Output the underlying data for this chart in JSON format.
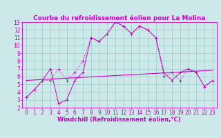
{
  "title": "Courbe du refroidissement éolien pour La Molina",
  "xlabel": "Windchill (Refroidissement éolien,°C)",
  "bg_color": "#cce8e8",
  "line1_x": [
    0,
    1,
    2,
    3,
    4,
    5,
    6,
    7,
    8,
    9,
    10,
    11,
    12,
    13,
    14,
    15,
    16,
    17,
    18,
    19,
    20,
    21,
    22,
    23
  ],
  "line1_y": [
    3.3,
    4.3,
    5.5,
    5.5,
    7.0,
    5.5,
    6.5,
    8.0,
    11.0,
    10.5,
    11.5,
    13.0,
    12.5,
    11.5,
    12.5,
    12.0,
    11.0,
    6.0,
    6.5,
    5.5,
    7.0,
    6.5,
    4.7,
    5.5
  ],
  "line2_x": [
    0,
    1,
    2,
    3,
    4,
    5,
    6,
    7,
    8,
    9,
    10,
    11,
    12,
    13,
    14,
    15,
    16,
    17,
    18,
    19,
    20,
    21,
    22,
    23
  ],
  "line2_y": [
    3.3,
    4.3,
    5.5,
    7.0,
    2.5,
    3.0,
    5.5,
    6.5,
    11.0,
    10.5,
    11.5,
    13.0,
    12.5,
    11.5,
    12.5,
    12.0,
    11.0,
    6.5,
    5.5,
    6.5,
    7.0,
    6.5,
    4.7,
    5.5
  ],
  "trend_x": [
    0,
    23
  ],
  "trend_y": [
    5.5,
    6.8
  ],
  "line_color": "#cc00cc",
  "marker": "+",
  "xlim": [
    -0.5,
    23.5
  ],
  "ylim": [
    2,
    13
  ],
  "yticks": [
    2,
    3,
    4,
    5,
    6,
    7,
    8,
    9,
    10,
    11,
    12,
    13
  ],
  "xticks": [
    0,
    1,
    2,
    3,
    4,
    5,
    6,
    7,
    8,
    9,
    10,
    11,
    12,
    13,
    14,
    15,
    16,
    17,
    18,
    19,
    20,
    21,
    22,
    23
  ],
  "grid_color": "#99cccc",
  "title_fontsize": 6.5,
  "axis_fontsize": 6.0,
  "tick_fontsize": 5.5
}
